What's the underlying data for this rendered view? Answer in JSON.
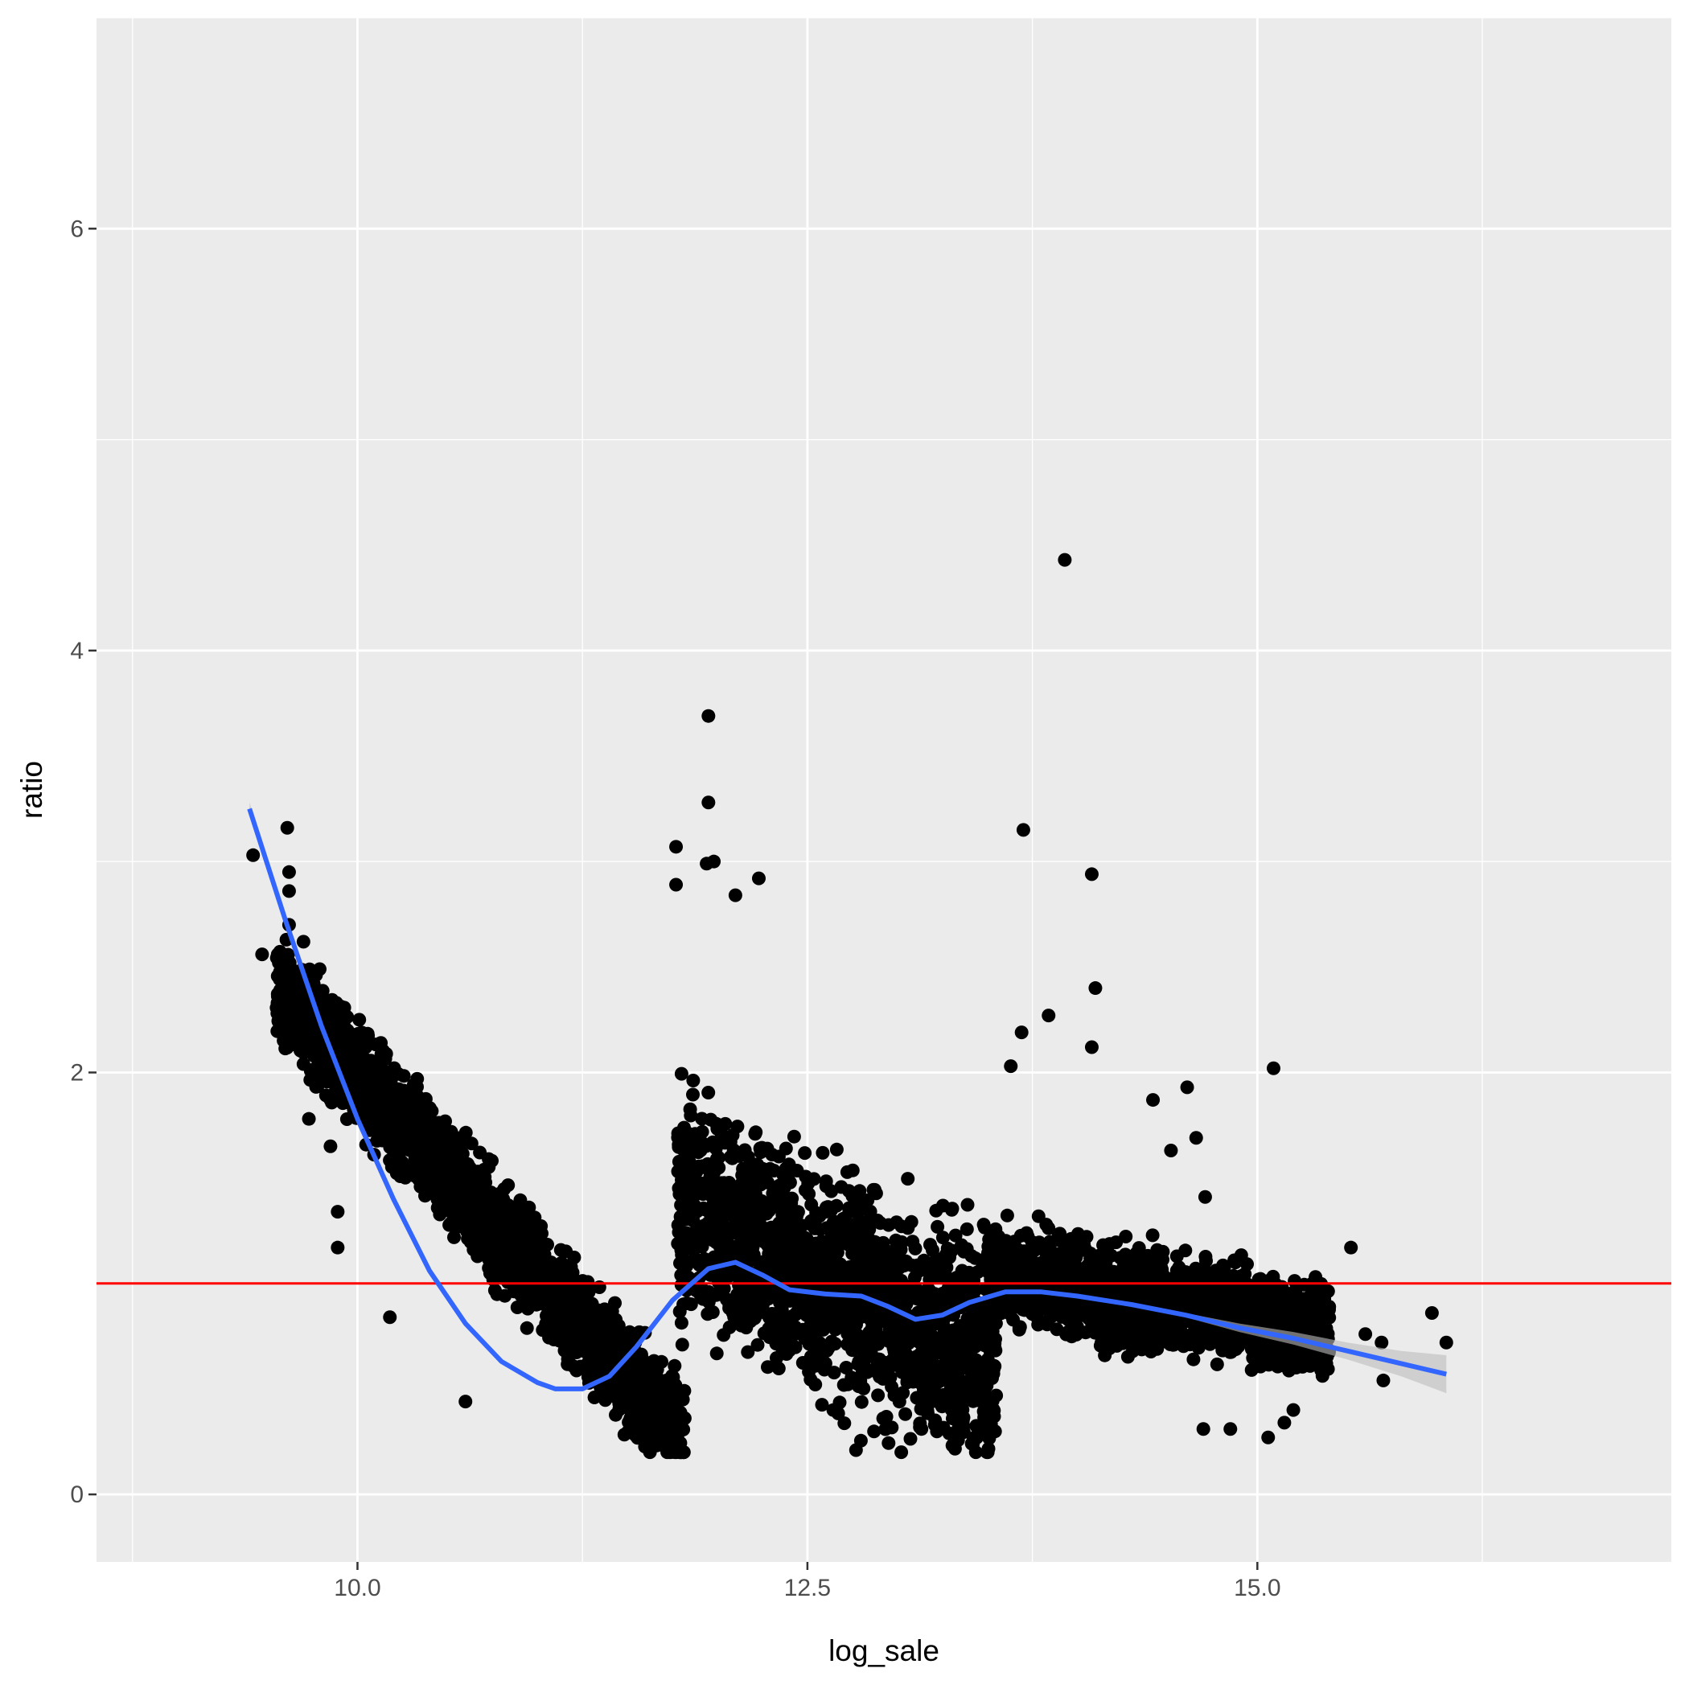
{
  "chart_data": {
    "type": "scatter",
    "title": "",
    "xlabel": "log_sale",
    "ylabel": "ratio",
    "xlim": [
      8.55,
      17.3
    ],
    "ylim": [
      -0.32,
      7.0
    ],
    "x_ticks": [
      10.0,
      12.5,
      15.0
    ],
    "x_tick_labels": [
      "10.0",
      "12.5",
      "15.0"
    ],
    "x_minor_ticks": [
      8.75,
      11.25,
      13.75,
      16.25
    ],
    "y_ticks": [
      0,
      2,
      4,
      6
    ],
    "y_tick_labels": [
      "0",
      "2",
      "4",
      "6"
    ],
    "y_minor_ticks": [
      1,
      3,
      5,
      7
    ],
    "grid": true,
    "colors": {
      "panel_background": "#ebebeb",
      "grid": "#ffffff",
      "points": "#000000",
      "smooth_line": "#3366ff",
      "confidence_band": "#bdbdbd",
      "reference_line": "#ff0000"
    },
    "reference_line": {
      "orientation": "horizontal",
      "y": 1.0
    },
    "smooth": {
      "x": [
        9.4,
        9.6,
        9.8,
        10.0,
        10.2,
        10.4,
        10.6,
        10.8,
        11.0,
        11.1,
        11.25,
        11.4,
        11.55,
        11.75,
        11.95,
        12.1,
        12.25,
        12.4,
        12.6,
        12.8,
        12.95,
        13.1,
        13.25,
        13.4,
        13.6,
        13.8,
        14.0,
        14.3,
        14.6,
        14.9,
        15.2,
        15.5,
        15.8,
        16.05
      ],
      "y": [
        3.25,
        2.72,
        2.22,
        1.78,
        1.4,
        1.06,
        0.81,
        0.63,
        0.53,
        0.5,
        0.5,
        0.56,
        0.7,
        0.92,
        1.07,
        1.1,
        1.04,
        0.97,
        0.95,
        0.94,
        0.89,
        0.83,
        0.85,
        0.91,
        0.96,
        0.96,
        0.94,
        0.9,
        0.85,
        0.79,
        0.74,
        0.68,
        0.62,
        0.57
      ],
      "ci_upper": [
        3.28,
        2.74,
        2.23,
        1.79,
        1.41,
        1.07,
        0.82,
        0.64,
        0.54,
        0.51,
        0.51,
        0.57,
        0.71,
        0.93,
        1.08,
        1.11,
        1.05,
        0.98,
        0.96,
        0.95,
        0.9,
        0.84,
        0.86,
        0.92,
        0.97,
        0.97,
        0.95,
        0.91,
        0.86,
        0.81,
        0.77,
        0.72,
        0.68,
        0.66
      ],
      "ci_lower": [
        3.22,
        2.7,
        2.21,
        1.77,
        1.39,
        1.05,
        0.8,
        0.62,
        0.52,
        0.49,
        0.49,
        0.55,
        0.69,
        0.91,
        1.06,
        1.09,
        1.03,
        0.96,
        0.94,
        0.93,
        0.88,
        0.82,
        0.84,
        0.9,
        0.95,
        0.95,
        0.93,
        0.89,
        0.84,
        0.77,
        0.71,
        0.64,
        0.56,
        0.48
      ]
    },
    "point_clusters": [
      {
        "x_range": [
          9.55,
          11.82
        ],
        "ratio_at_start": 2.4,
        "ratio_at_end": 0.27,
        "spread_low": 0.35,
        "spread_high": 0.35
      },
      {
        "x_range": [
          11.78,
          13.55
        ],
        "ratio_at_start": 1.35,
        "ratio_at_end": 0.65,
        "spread_low": 0.75,
        "spread_high": 0.75
      },
      {
        "x_range": [
          13.5,
          15.4
        ],
        "ratio_at_start": 1.05,
        "ratio_at_end": 0.78,
        "spread_low": 0.32,
        "spread_high": 0.32
      }
    ],
    "points": [
      {
        "x": 9.42,
        "y": 3.03
      },
      {
        "x": 9.47,
        "y": 2.56
      },
      {
        "x": 9.61,
        "y": 3.16
      },
      {
        "x": 9.62,
        "y": 2.95
      },
      {
        "x": 9.62,
        "y": 2.86
      },
      {
        "x": 9.62,
        "y": 2.7
      },
      {
        "x": 9.62,
        "y": 2.5
      },
      {
        "x": 9.62,
        "y": 2.44
      },
      {
        "x": 9.7,
        "y": 2.62
      },
      {
        "x": 9.75,
        "y": 2.42
      },
      {
        "x": 9.79,
        "y": 2.49
      },
      {
        "x": 9.76,
        "y": 2.37
      },
      {
        "x": 9.7,
        "y": 2.04
      },
      {
        "x": 9.73,
        "y": 1.78
      },
      {
        "x": 9.77,
        "y": 2.24
      },
      {
        "x": 9.81,
        "y": 2.03
      },
      {
        "x": 9.86,
        "y": 2.03
      },
      {
        "x": 9.85,
        "y": 1.65
      },
      {
        "x": 9.89,
        "y": 1.34
      },
      {
        "x": 9.89,
        "y": 1.17
      },
      {
        "x": 9.94,
        "y": 2.14
      },
      {
        "x": 10.01,
        "y": 2.25
      },
      {
        "x": 10.13,
        "y": 2.14
      },
      {
        "x": 10.13,
        "y": 2.03
      },
      {
        "x": 10.18,
        "y": 0.84
      },
      {
        "x": 10.38,
        "y": 1.74
      },
      {
        "x": 10.47,
        "y": 1.6
      },
      {
        "x": 10.6,
        "y": 0.44
      },
      {
        "x": 11.95,
        "y": 3.69
      },
      {
        "x": 11.95,
        "y": 3.28
      },
      {
        "x": 11.77,
        "y": 3.07
      },
      {
        "x": 11.94,
        "y": 2.99
      },
      {
        "x": 11.98,
        "y": 3.0
      },
      {
        "x": 12.23,
        "y": 2.92
      },
      {
        "x": 11.77,
        "y": 2.89
      },
      {
        "x": 12.1,
        "y": 2.84
      },
      {
        "x": 12.77,
        "y": 0.21
      },
      {
        "x": 13.42,
        "y": 0.24
      },
      {
        "x": 13.93,
        "y": 4.43
      },
      {
        "x": 13.7,
        "y": 3.15
      },
      {
        "x": 14.08,
        "y": 2.94
      },
      {
        "x": 14.1,
        "y": 2.4
      },
      {
        "x": 14.08,
        "y": 2.12
      },
      {
        "x": 13.84,
        "y": 2.27
      },
      {
        "x": 13.69,
        "y": 2.19
      },
      {
        "x": 13.63,
        "y": 2.03
      },
      {
        "x": 14.42,
        "y": 1.87
      },
      {
        "x": 14.61,
        "y": 1.93
      },
      {
        "x": 14.52,
        "y": 1.63
      },
      {
        "x": 14.66,
        "y": 1.69
      },
      {
        "x": 14.71,
        "y": 1.41
      },
      {
        "x": 15.09,
        "y": 2.02
      },
      {
        "x": 15.52,
        "y": 1.17
      },
      {
        "x": 15.6,
        "y": 0.76
      },
      {
        "x": 15.69,
        "y": 0.72
      },
      {
        "x": 15.7,
        "y": 0.54
      },
      {
        "x": 15.97,
        "y": 0.86
      },
      {
        "x": 16.05,
        "y": 0.72
      },
      {
        "x": 15.06,
        "y": 0.27
      },
      {
        "x": 15.15,
        "y": 0.34
      },
      {
        "x": 15.2,
        "y": 0.4
      },
      {
        "x": 14.85,
        "y": 0.31
      },
      {
        "x": 14.7,
        "y": 0.31
      }
    ]
  }
}
